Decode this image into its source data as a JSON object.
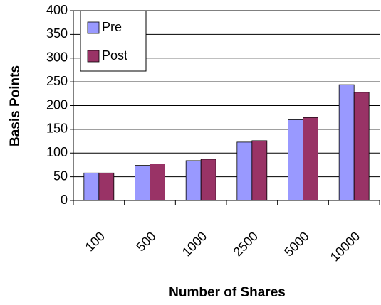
{
  "chart_data": {
    "type": "bar",
    "x_label": "Number of Shares",
    "y_label": "Basis Points",
    "categories": [
      "100",
      "500",
      "1000",
      "2500",
      "5000",
      "10000"
    ],
    "series": [
      {
        "name": "Pre",
        "color": "#9999ff",
        "values": [
          58,
          74,
          84,
          123,
          170,
          244
        ]
      },
      {
        "name": "Post",
        "color": "#993366",
        "values": [
          58,
          77,
          87,
          126,
          175,
          228
        ]
      }
    ],
    "ylim": [
      0,
      400
    ],
    "yticks": [
      0,
      50,
      100,
      150,
      200,
      250,
      300,
      350,
      400
    ],
    "grid": true,
    "legend": "upper left"
  }
}
